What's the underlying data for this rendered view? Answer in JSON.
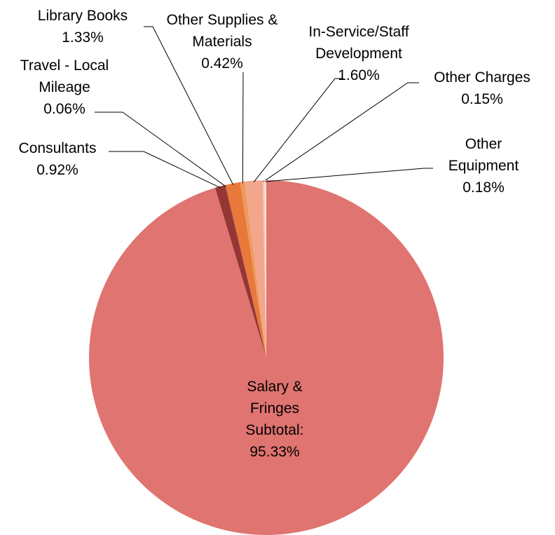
{
  "chart_data": {
    "type": "pie",
    "categories": [
      "Salary & Fringes Subtotal:",
      "Consultants",
      "Travel - Local Mileage",
      "Library Books",
      "Other Supplies & Materials",
      "In-Service/Staff Development",
      "Other Charges",
      "Other Equipment"
    ],
    "values": [
      95.33,
      0.92,
      0.06,
      1.33,
      0.42,
      1.6,
      0.15,
      0.18
    ],
    "value_labels": [
      "95.33%",
      "0.92%",
      "0.06%",
      "1.33%",
      "0.42%",
      "1.60%",
      "0.15%",
      "0.18%"
    ],
    "colors": [
      "#e07470",
      "#943634",
      "#b8433f",
      "#e8793a",
      "#ee9a5e",
      "#f2a68c",
      "#f6c3b0",
      "#fbe1d7"
    ]
  }
}
